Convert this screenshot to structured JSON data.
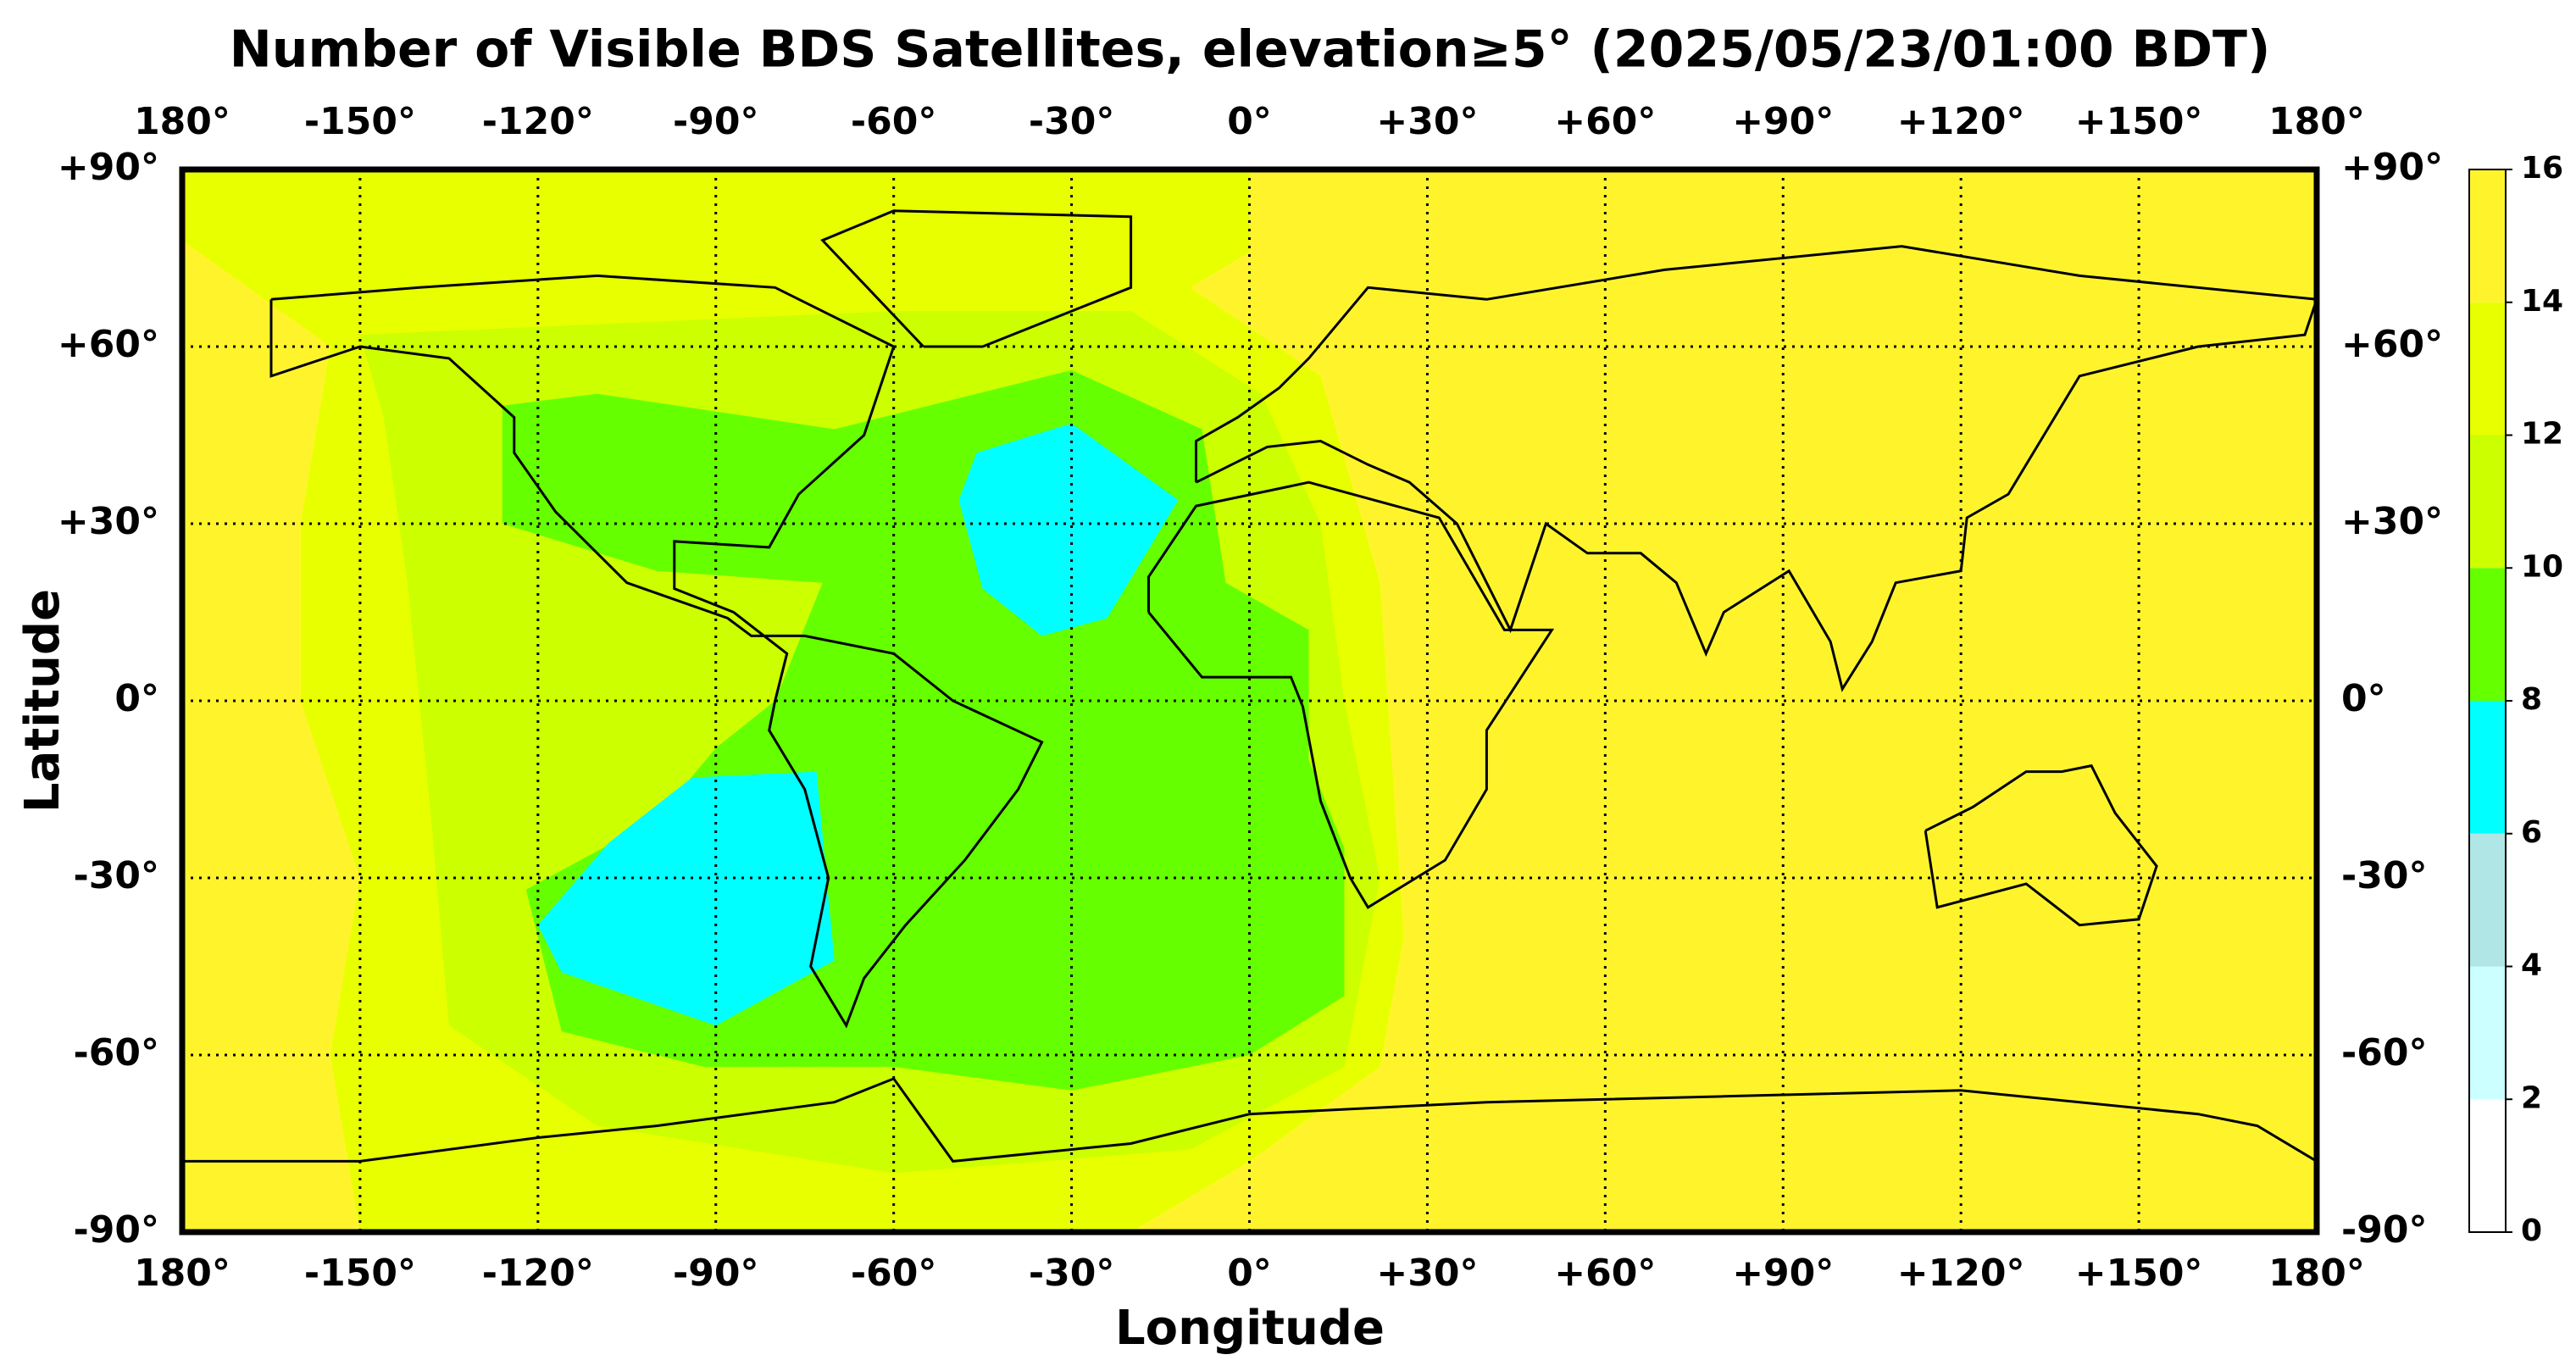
{
  "title": "Number of Visible BDS Satellites, elevation≥5° (2025/05/23/01:00 BDT)",
  "map": {
    "xlabel": "Longitude",
    "ylabel": "Latitude",
    "xlim": [
      -180,
      180
    ],
    "ylim": [
      -90,
      90
    ],
    "xticks": [
      {
        "value": -180,
        "label": "180°"
      },
      {
        "value": -150,
        "label": "-150°"
      },
      {
        "value": -120,
        "label": "-120°"
      },
      {
        "value": -90,
        "label": "-90°"
      },
      {
        "value": -60,
        "label": "-60°"
      },
      {
        "value": -30,
        "label": "-30°"
      },
      {
        "value": 0,
        "label": "0°"
      },
      {
        "value": 30,
        "label": "+30°"
      },
      {
        "value": 60,
        "label": "+60°"
      },
      {
        "value": 90,
        "label": "+90°"
      },
      {
        "value": 120,
        "label": "+120°"
      },
      {
        "value": 150,
        "label": "+150°"
      },
      {
        "value": 180,
        "label": "180°"
      }
    ],
    "yticks": [
      {
        "value": 90,
        "label": "+90°"
      },
      {
        "value": 60,
        "label": "+60°"
      },
      {
        "value": 30,
        "label": "+30°"
      },
      {
        "value": 0,
        "label": "0°"
      },
      {
        "value": -30,
        "label": "-30°"
      },
      {
        "value": -60,
        "label": "-60°"
      },
      {
        "value": -90,
        "label": "-90°"
      }
    ],
    "grid": true
  },
  "colorbar": {
    "ticks": [
      0,
      2,
      4,
      6,
      8,
      10,
      12,
      14,
      16
    ],
    "colors": [
      "#ffffff",
      "#ccffff",
      "#b0e6e6",
      "#00ffff",
      "#66ff00",
      "#ccff00",
      "#e8ff00",
      "#fff42c"
    ]
  }
}
